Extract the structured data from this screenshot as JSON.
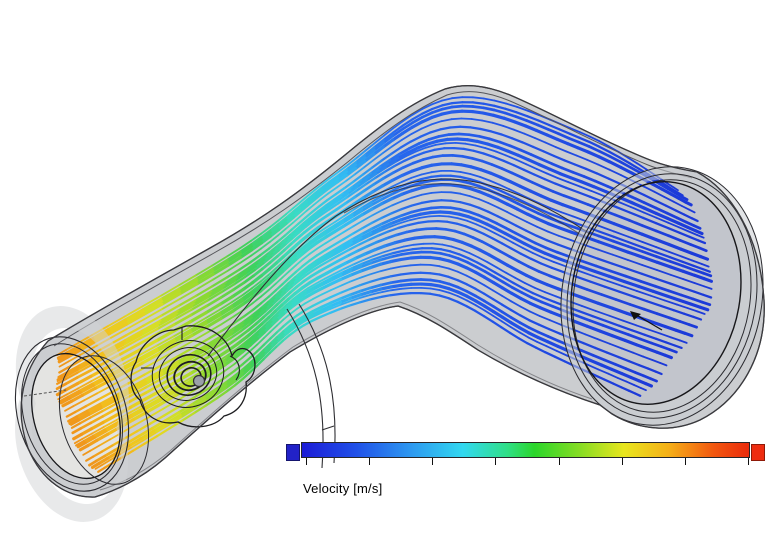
{
  "scene": {
    "background": "#ffffff",
    "description": "CFD flow trajectories through a curved intake duct, colored by velocity"
  },
  "model": {
    "shell_color": "#cbcdd0",
    "edge_color": "#3a3a3e",
    "outlet_disc_color": "#e4e4e2",
    "inlet_disc_color": "#c2c5cc",
    "boss_ball_color": "#9aa0a8"
  },
  "flow": {
    "streamline_count": 34,
    "direction": "inlet-right-to-outlet-left",
    "colormap_stops": [
      [
        0.0,
        "#1c39d8"
      ],
      [
        0.3,
        "#2356e8"
      ],
      [
        0.44,
        "#2767ec"
      ],
      [
        0.54,
        "#33c0f2"
      ],
      [
        0.62,
        "#3adcc4"
      ],
      [
        0.7,
        "#3fd159"
      ],
      [
        0.78,
        "#90da30"
      ],
      [
        0.86,
        "#dade25"
      ],
      [
        0.93,
        "#f2c41d"
      ],
      [
        1.0,
        "#f0931b"
      ]
    ]
  },
  "legend": {
    "label": "Velocity [m/s]",
    "orientation": "horizontal",
    "tick_count": 8,
    "tick_x_start": 306,
    "tick_x_end": 748,
    "numeric_labels_visible": false,
    "cap_min_color": "#2222c8",
    "cap_max_color": "#ee2c10",
    "gradient_stops": [
      [
        0.0,
        "#1c1cd6"
      ],
      [
        0.12,
        "#2050e8"
      ],
      [
        0.25,
        "#2e9cf0"
      ],
      [
        0.36,
        "#32d8f0"
      ],
      [
        0.46,
        "#2fdf86"
      ],
      [
        0.52,
        "#2bd62b"
      ],
      [
        0.62,
        "#85dc24"
      ],
      [
        0.72,
        "#e8e61e"
      ],
      [
        0.82,
        "#f5b018"
      ],
      [
        0.92,
        "#f25810"
      ],
      [
        1.0,
        "#e92b0c"
      ]
    ]
  }
}
